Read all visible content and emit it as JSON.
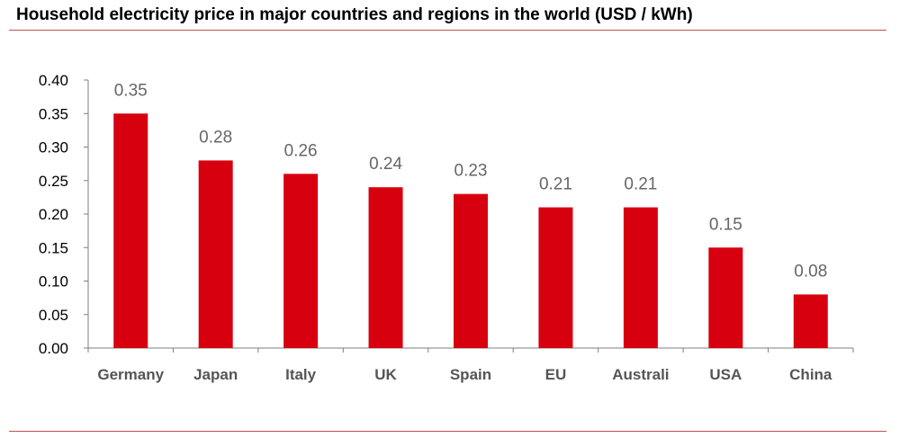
{
  "chart_data": {
    "type": "bar",
    "title": "Household electricity price in major countries and regions in the world (USD / kWh)",
    "categories": [
      "Germany",
      "Japan",
      "Italy",
      "UK",
      "Spain",
      "EU",
      "Australi",
      "USA",
      "China"
    ],
    "values": [
      0.35,
      0.28,
      0.26,
      0.24,
      0.23,
      0.21,
      0.21,
      0.15,
      0.08
    ],
    "data_labels": [
      "0.35",
      "0.28",
      "0.26",
      "0.24",
      "0.23",
      "0.21",
      "0.21",
      "0.15",
      "0.08"
    ],
    "yticks": [
      "0.00",
      "0.05",
      "0.10",
      "0.15",
      "0.20",
      "0.25",
      "0.30",
      "0.35",
      "0.40"
    ],
    "ylim": [
      0,
      0.4
    ],
    "xlabel": "",
    "ylabel": "",
    "grid": false,
    "legend": "none",
    "bar_color": "#d7000f"
  }
}
